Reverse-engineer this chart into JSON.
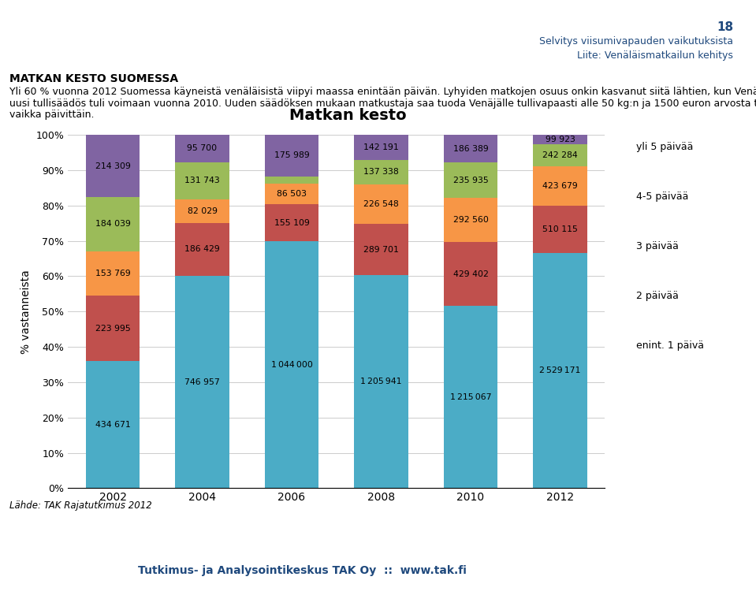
{
  "title": "Matkan kesto",
  "years": [
    "2002",
    "2004",
    "2006",
    "2008",
    "2010",
    "2012"
  ],
  "ylabel": "% vastanneista",
  "categories": [
    "enint. 1 päivä",
    "2 päivää",
    "3 päivää",
    "4-5 päivää",
    "yli 5 päivää"
  ],
  "colors": [
    "#4BACC6",
    "#C0504D",
    "#F79646",
    "#9BBB59",
    "#8064A2"
  ],
  "values": {
    "enint. 1 päivä": [
      434671,
      746957,
      1044000,
      1205941,
      1215067,
      2529171
    ],
    "2 päivää": [
      223995,
      186429,
      155109,
      289701,
      429402,
      510115
    ],
    "3 päivää": [
      153769,
      82029,
      86503,
      226548,
      292560,
      423679
    ],
    "4-5 päivää": [
      184039,
      131743,
      31320,
      137338,
      235935,
      242284
    ],
    "yli 5 päivää": [
      214309,
      95700,
      175989,
      142191,
      186389,
      99923
    ]
  },
  "header_number": "18",
  "header_line1": "Selvitys viisumivapauden vaikutuksista",
  "header_line2": "Liite: Venäläismatkailun kehitys",
  "section_title": "MATKAN KESTO SUOMESSA",
  "body_text1": "Yli 60 % vuonna 2012 Suomessa käyneistä venäläisistä viipyi maassa enintään päivän. Lyhyiden matkojen osuus onkin kasvanut siitä lähtien, kun Venäjän",
  "body_text2": "uusi tullisäädös tuli voimaan vuonna 2010. Uuden säädöksen mukaan matkustaja saa tuoda Venäjälle tullivapaasti alle 50 kg:n ja 1500 euron arvosta tavaraa",
  "body_text3": "vaikka päivittäin.",
  "footer_source": "Lähde: TAK Rajatutkimus 2012",
  "footer_company": "Tutkimus- ja Analysointikeskus TAK Oy",
  "footer_separator": "::",
  "footer_website": "www.tak.fi",
  "bg_color": "#FFFFFF",
  "header_blue": "#1F497D",
  "bar_width": 0.6,
  "ytick_labels": [
    "0%",
    "10%",
    "20%",
    "30%",
    "40%",
    "50%",
    "60%",
    "70%",
    "80%",
    "90%",
    "100%"
  ]
}
